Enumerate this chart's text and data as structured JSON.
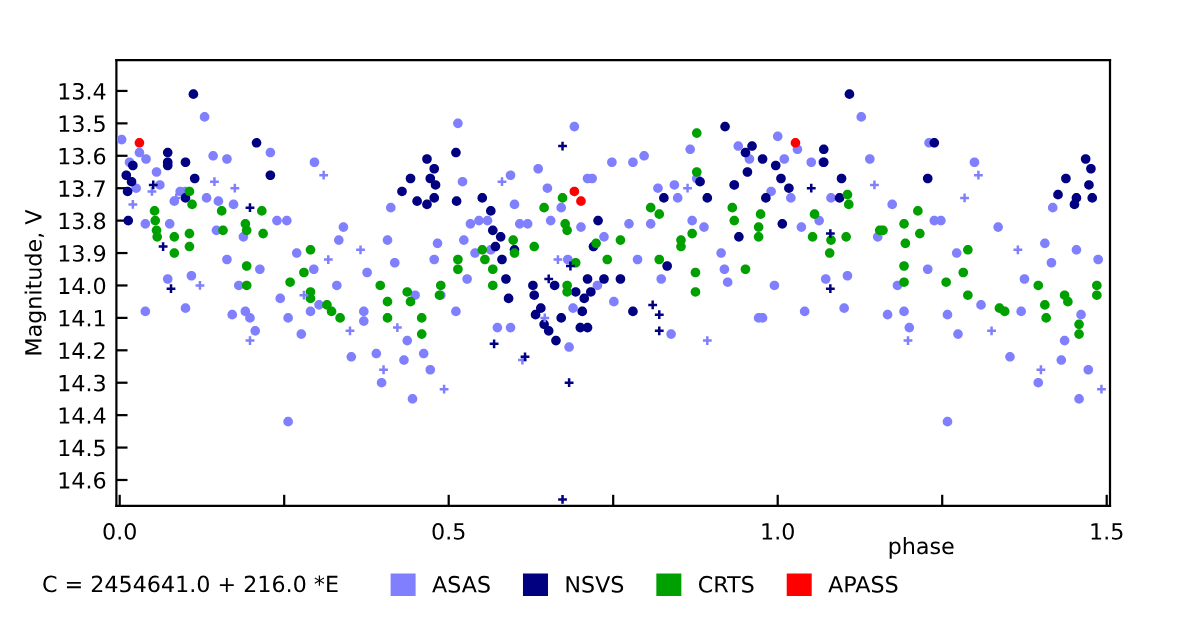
{
  "chart_data": {
    "type": "scatter",
    "xlabel": "phase",
    "ylabel": "Magnitude, V",
    "annotations": [
      "C = 2454641.0 + 216.0 *E"
    ],
    "xlim": [
      -0.005,
      1.505
    ],
    "xticks": [
      {
        "value": 0,
        "label": "0.0"
      },
      {
        "value": 0.25,
        "label": null
      },
      {
        "value": 0.5,
        "label": "0.5"
      },
      {
        "value": 0.75,
        "label": null
      },
      {
        "value": 1,
        "label": "1.0"
      },
      {
        "value": 1.25,
        "label": null
      },
      {
        "value": 1.5,
        "label": "1.5"
      }
    ],
    "ylim": [
      14.68,
      13.305
    ],
    "yticks": [
      13.4,
      13.5,
      13.6,
      13.7,
      13.8,
      13.9,
      {
        "value": 14,
        "label": "14.0"
      },
      14.1,
      14.2,
      14.3,
      14.4,
      14.5,
      14.6
    ],
    "grid": false,
    "legend": "bottom",
    "marker": "circle",
    "series": [
      {
        "name": "ASAS",
        "color": "#8080ff",
        "x": [
          0.003,
          0.015,
          0.03,
          0.04,
          0.025,
          0.039,
          0.039,
          0.056,
          0.061,
          0.083,
          0.092,
          0.1,
          0.076,
          0.073,
          0.1,
          0.109,
          0.129,
          0.132,
          0.142,
          0.163,
          0.147,
          0.163,
          0.171,
          0.15,
          0.173,
          0.181,
          0.191,
          0.188,
          0.198,
          0.206,
          0.213,
          0.229,
          0.239,
          0.254,
          0.256,
          0.244,
          0.256,
          0.269,
          0.276,
          0.29,
          0.296,
          0.295,
          0.303,
          0.33,
          0.333,
          0.34,
          0.352,
          0.371,
          0.371,
          0.376,
          0.39,
          0.398,
          0.407,
          0.412,
          0.418,
          0.432,
          0.437,
          0.445,
          0.449,
          0.462,
          0.472,
          0.478,
          0.488,
          0.483,
          0.514,
          0.511,
          0.521,
          0.523,
          0.528,
          0.533,
          0.54,
          0.546,
          0.559,
          0.564,
          0.574,
          0.594,
          0.594,
          0.6,
          0.608,
          0.62,
          0.636,
          0.65,
          0.655,
          0.691,
          0.689,
          0.683,
          0.671,
          0.681,
          0.701,
          0.711,
          0.726,
          0.718,
          0.736,
          0.748,
          0.751,
          0.78,
          0.797,
          0.774,
          0.787,
          0.807,
          0.818,
          0.823,
          0.838,
          0.843,
          0.848,
          0.867,
          0.87,
          0.877,
          0.888,
          0.914,
          0.919,
          0.924,
          0.934,
          0.94,
          0.957,
          0.971,
          0.977,
          0.99,
          0.995,
          1.0,
          1.01,
          1.02,
          1.03,
          1.036,
          1.041,
          1.051,
          1.063,
          1.069,
          1.073,
          1.081,
          1.101,
          1.106,
          1.127,
          1.14,
          1.152,
          1.167,
          1.174,
          1.182,
          1.192,
          1.2,
          1.228,
          1.23,
          1.238,
          1.248,
          1.258,
          1.258,
          1.272,
          1.274,
          1.299,
          1.309,
          1.335,
          1.353,
          1.37,
          1.375,
          1.396,
          1.406,
          1.418,
          1.416,
          1.431,
          1.436,
          1.458,
          1.461,
          1.454,
          1.472,
          1.487
        ],
        "values": [
          13.55,
          13.62,
          13.59,
          13.61,
          13.7,
          13.81,
          14.08,
          13.65,
          13.69,
          13.74,
          13.71,
          13.71,
          13.81,
          13.98,
          14.07,
          13.97,
          13.48,
          13.73,
          13.6,
          13.61,
          13.83,
          13.92,
          14.09,
          13.74,
          13.75,
          14.0,
          14.08,
          13.85,
          14.1,
          14.14,
          13.95,
          13.59,
          13.8,
          13.8,
          14.42,
          14.04,
          14.1,
          13.9,
          14.15,
          14.08,
          13.62,
          13.95,
          14.06,
          14.0,
          13.86,
          13.82,
          14.22,
          14.08,
          14.11,
          13.96,
          14.21,
          14.3,
          13.86,
          13.76,
          13.93,
          14.23,
          14.17,
          14.35,
          14.03,
          14.21,
          14.26,
          13.92,
          14.03,
          13.87,
          13.5,
          14.08,
          13.68,
          13.86,
          13.98,
          13.81,
          13.9,
          13.8,
          13.8,
          13.89,
          14.13,
          14.13,
          13.66,
          13.75,
          13.81,
          13.81,
          13.64,
          13.7,
          13.8,
          13.51,
          14.07,
          14.19,
          13.76,
          13.92,
          13.82,
          13.67,
          14.0,
          13.67,
          13.85,
          13.62,
          14.05,
          13.62,
          13.6,
          13.81,
          13.92,
          13.81,
          13.7,
          13.98,
          14.15,
          13.69,
          13.73,
          13.58,
          13.8,
          13.67,
          13.82,
          13.9,
          13.95,
          13.99,
          13.69,
          13.57,
          13.61,
          14.1,
          14.1,
          13.71,
          14.0,
          13.54,
          13.61,
          13.73,
          13.58,
          13.82,
          14.08,
          13.62,
          13.8,
          13.62,
          13.98,
          13.73,
          14.07,
          13.97,
          13.48,
          13.61,
          13.85,
          14.09,
          13.75,
          14.0,
          14.08,
          14.13,
          13.95,
          13.56,
          13.8,
          13.8,
          14.42,
          14.09,
          13.9,
          14.15,
          13.62,
          14.06,
          13.82,
          14.22,
          14.08,
          13.98,
          14.3,
          13.87,
          13.76,
          13.93,
          14.23,
          14.17,
          14.35,
          14.09,
          13.89,
          14.26,
          13.92
        ]
      },
      {
        "color": "#8080ff",
        "marker": "cross",
        "x": [
          0.02,
          0.049,
          0.086,
          0.122,
          0.144,
          0.175,
          0.198,
          0.28,
          0.31,
          0.317,
          0.35,
          0.366,
          0.401,
          0.422,
          0.493,
          0.581,
          0.612,
          0.646,
          0.666,
          0.863,
          0.893,
          1.147,
          1.198,
          1.284,
          1.305,
          1.325,
          1.365,
          1.4,
          1.492
        ],
        "values": [
          13.75,
          13.71,
          13.73,
          14.0,
          13.68,
          13.7,
          14.17,
          14.03,
          13.66,
          13.92,
          14.14,
          13.89,
          14.26,
          14.13,
          14.32,
          13.68,
          14.23,
          14.1,
          13.92,
          13.7,
          14.17,
          13.69,
          14.17,
          13.73,
          13.66,
          14.14,
          13.89,
          14.26,
          14.32
        ]
      },
      {
        "name": "NSVS",
        "color": "#000080",
        "x": [
          0.01,
          0.012,
          0.018,
          0.02,
          0.013,
          0.073,
          0.073,
          0.073,
          0.1,
          0.1,
          0.112,
          0.114,
          0.208,
          0.229,
          0.429,
          0.442,
          0.452,
          0.467,
          0.472,
          0.478,
          0.48,
          0.478,
          0.467,
          0.511,
          0.512,
          0.551,
          0.564,
          0.567,
          0.571,
          0.579,
          0.581,
          0.587,
          0.591,
          0.6,
          0.628,
          0.63,
          0.632,
          0.64,
          0.645,
          0.652,
          0.661,
          0.663,
          0.671,
          0.693,
          0.7,
          0.703,
          0.706,
          0.716,
          0.72,
          0.711,
          0.711,
          0.727,
          0.736,
          0.761,
          0.78,
          0.827,
          0.832,
          0.882,
          0.893,
          0.92,
          0.934,
          0.941,
          0.951,
          0.961,
          0.954,
          0.982,
          0.977,
          0.997,
          1.005,
          1.007,
          1.017,
          1.07,
          1.07,
          1.097,
          1.109,
          1.094,
          1.228,
          1.238,
          1.426,
          1.438,
          1.454,
          1.468,
          1.476,
          1.473,
          1.478,
          1.451
        ],
        "values": [
          13.66,
          13.71,
          13.68,
          13.63,
          13.8,
          13.59,
          13.62,
          13.63,
          13.62,
          13.73,
          13.41,
          13.67,
          13.56,
          13.66,
          13.71,
          13.67,
          13.74,
          13.61,
          13.67,
          13.64,
          13.69,
          13.73,
          13.75,
          13.59,
          13.74,
          13.73,
          13.77,
          13.83,
          13.88,
          13.85,
          13.92,
          13.98,
          14.04,
          13.89,
          14.0,
          14.03,
          14.09,
          14.07,
          14.12,
          14.14,
          14.0,
          14.17,
          14.1,
          14.02,
          14.13,
          14.08,
          14.04,
          14.02,
          13.88,
          13.98,
          14.13,
          13.8,
          13.98,
          13.98,
          14.08,
          13.73,
          13.94,
          13.68,
          13.73,
          13.51,
          13.69,
          13.85,
          13.59,
          13.57,
          13.65,
          13.73,
          13.61,
          13.63,
          13.67,
          13.81,
          13.7,
          13.58,
          13.62,
          13.67,
          13.41,
          13.73,
          13.67,
          13.56,
          13.72,
          13.67,
          13.73,
          13.61,
          13.64,
          13.69,
          13.73,
          13.75
        ]
      },
      {
        "color": "#000080",
        "marker": "cross",
        "x": [
          0.051,
          0.066,
          0.078,
          0.198,
          0.569,
          0.616,
          0.652,
          0.673,
          0.683,
          0.673,
          0.685,
          0.81,
          0.82,
          0.82,
          1.051,
          1.08,
          1.08
        ],
        "values": [
          13.69,
          13.88,
          14.01,
          13.76,
          14.18,
          14.22,
          13.98,
          13.57,
          14.3,
          14.66,
          13.94,
          14.06,
          14.09,
          14.14,
          13.7,
          13.84,
          14.01
        ]
      },
      {
        "name": "CRTS",
        "color": "#00a000",
        "x": [
          0.053,
          0.054,
          0.056,
          0.057,
          0.083,
          0.083,
          0.106,
          0.11,
          0.106,
          0.106,
          0.155,
          0.157,
          0.191,
          0.193,
          0.193,
          0.193,
          0.216,
          0.218,
          0.259,
          0.28,
          0.29,
          0.29,
          0.29,
          0.315,
          0.322,
          0.335,
          0.396,
          0.407,
          0.407,
          0.437,
          0.442,
          0.459,
          0.459,
          0.488,
          0.486,
          0.514,
          0.514,
          0.551,
          0.555,
          0.567,
          0.567,
          0.598,
          0.6,
          0.63,
          0.645,
          0.673,
          0.677,
          0.68,
          0.68,
          0.68,
          0.693,
          0.724,
          0.741,
          0.761,
          0.807,
          0.82,
          0.82,
          0.853,
          0.853,
          0.87,
          0.877,
          0.877,
          0.875,
          0.875,
          0.931,
          0.934,
          0.951,
          0.974,
          0.971,
          0.971,
          1.056,
          1.053,
          1.079,
          1.081,
          1.104,
          1.106,
          1.108,
          1.155,
          1.16,
          1.192,
          1.194,
          1.192,
          1.192,
          1.213,
          1.216,
          1.256,
          1.282,
          1.289,
          1.289,
          1.337,
          1.345,
          1.396,
          1.406,
          1.408,
          1.436,
          1.441,
          1.458,
          1.458,
          1.485,
          1.485
        ],
        "values": [
          13.77,
          13.8,
          13.83,
          13.85,
          13.85,
          13.9,
          13.71,
          13.75,
          13.84,
          13.88,
          13.77,
          13.83,
          13.81,
          13.83,
          13.94,
          14.0,
          13.77,
          13.84,
          13.99,
          13.96,
          13.89,
          14.02,
          14.04,
          14.06,
          14.08,
          14.1,
          14.0,
          14.05,
          14.1,
          14.02,
          14.05,
          14.1,
          14.15,
          14.0,
          14.03,
          13.92,
          13.95,
          13.89,
          13.92,
          13.95,
          14.0,
          13.86,
          13.9,
          13.88,
          13.76,
          13.73,
          13.81,
          13.83,
          14.0,
          14.02,
          13.93,
          13.87,
          13.92,
          13.86,
          13.76,
          13.78,
          13.92,
          13.86,
          13.88,
          13.84,
          13.53,
          13.65,
          13.96,
          14.02,
          13.76,
          13.8,
          13.95,
          13.78,
          13.82,
          13.85,
          13.78,
          13.85,
          13.9,
          13.86,
          13.85,
          13.72,
          13.75,
          13.83,
          13.83,
          13.81,
          13.87,
          13.94,
          13.99,
          13.77,
          13.84,
          13.99,
          13.96,
          13.89,
          14.03,
          14.07,
          14.08,
          14.0,
          14.06,
          14.1,
          14.03,
          14.05,
          14.12,
          14.15,
          14.0,
          14.03
        ]
      },
      {
        "name": "APASS",
        "color": "#ff0000",
        "x": [
          0.03,
          0.691,
          0.701,
          1.027
        ],
        "values": [
          13.56,
          13.71,
          13.74,
          13.56
        ]
      }
    ]
  }
}
